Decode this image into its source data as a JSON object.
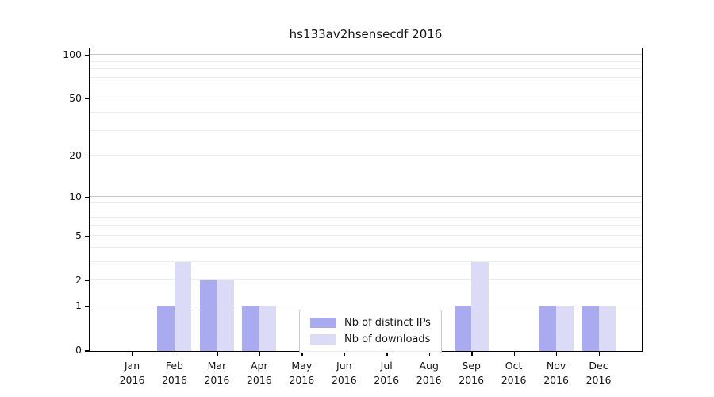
{
  "title": "hs133av2hsensecdf 2016",
  "chart_data": {
    "type": "bar",
    "title": "hs133av2hsensecdf 2016",
    "xlabel": "",
    "ylabel": "",
    "categories": [
      "Jan",
      "Feb",
      "Mar",
      "Apr",
      "May",
      "Jun",
      "Jul",
      "Aug",
      "Sep",
      "Oct",
      "Nov",
      "Dec"
    ],
    "year_label": "2016",
    "series": [
      {
        "name": "Nb of distinct IPs",
        "color": "#aaaaf0",
        "values": [
          0,
          1,
          2,
          1,
          0,
          0,
          0,
          0,
          1,
          0,
          1,
          1
        ]
      },
      {
        "name": "Nb of downloads",
        "color": "#dbdbf8",
        "values": [
          0,
          3,
          2,
          1,
          0,
          0,
          0,
          0,
          3,
          0,
          1,
          1
        ]
      }
    ],
    "y_scale": "log10(1+x)",
    "y_ticks": [
      0,
      1,
      2,
      5,
      10,
      20,
      50,
      100
    ],
    "y_minor_gridlines": [
      2,
      3,
      4,
      5,
      6,
      7,
      8,
      9,
      20,
      30,
      40,
      50,
      60,
      70,
      80,
      90
    ],
    "y_major_gridlines": [
      1,
      10,
      100
    ],
    "ylim": [
      0,
      112
    ],
    "grid": "horizontal",
    "legend_position": "inside lower-center"
  },
  "colors": {
    "minor_gridline": "#ececec",
    "major_gridline": "#c6c6c6",
    "axis": "#000000",
    "text": "#141414",
    "background": "#ffffff"
  }
}
